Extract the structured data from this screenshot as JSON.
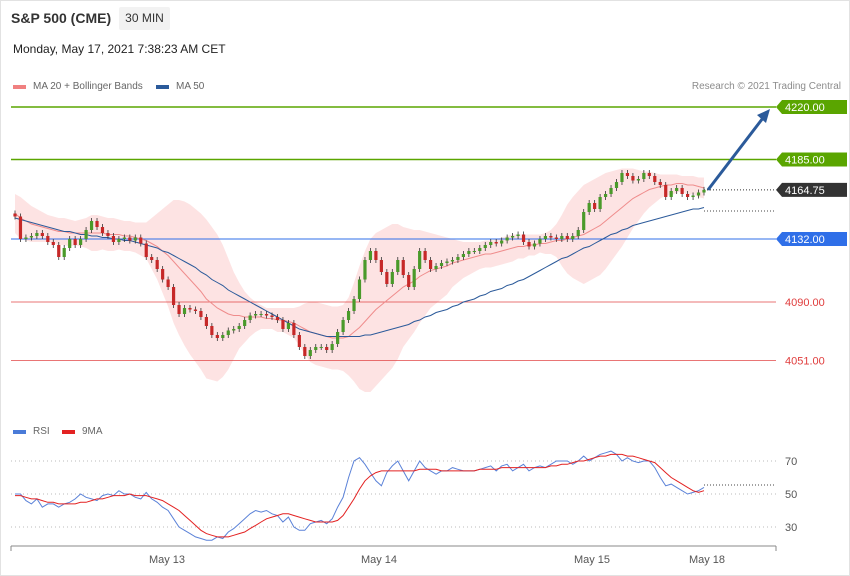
{
  "header": {
    "title": "S&P 500 (CME)",
    "timeframe": "30 MIN",
    "date": "Monday, May 17, 2021 7:38:23 AM CET",
    "copyright": "Research © 2021 Trading Central"
  },
  "legend": {
    "main": [
      {
        "label": "MA 20 + Bollinger Bands",
        "color": "#f08080"
      },
      {
        "label": "MA 50",
        "color": "#2b5a9a"
      }
    ],
    "rsi": [
      {
        "label": "RSI",
        "color": "#4a7bd8"
      },
      {
        "label": "9MA",
        "color": "#e32222"
      }
    ]
  },
  "chart_data": [
    {
      "type": "candlestick",
      "price_range": [
        4030,
        4236
      ],
      "levels": [
        {
          "value": 4220.0,
          "label": "4220.00",
          "color": "#5aa500",
          "kind": "resistance"
        },
        {
          "value": 4185.0,
          "label": "4185.00",
          "color": "#5aa500",
          "kind": "resistance"
        },
        {
          "value": 4164.75,
          "label": "4164.75",
          "color": "#333333",
          "kind": "last"
        },
        {
          "value": 4132.0,
          "label": "4132.00",
          "color": "#2f6fe8",
          "kind": "pivot"
        },
        {
          "value": 4090.0,
          "label": "4090.00",
          "color": "#e03c3c",
          "kind": "support"
        },
        {
          "value": 4051.0,
          "label": "4051.00",
          "color": "#e03c3c",
          "kind": "support"
        }
      ],
      "x_labels": [
        "May 13",
        "May 14",
        "May 15",
        "May 18"
      ],
      "close": [
        4147,
        4132,
        4133,
        4134,
        4136,
        4134,
        4130,
        4128,
        4120,
        4126,
        4132,
        4128,
        4132,
        4138,
        4144,
        4140,
        4136,
        4134,
        4130,
        4132,
        4133,
        4131,
        4133,
        4129,
        4120,
        4118,
        4112,
        4105,
        4100,
        4088,
        4082,
        4086,
        4085,
        4084,
        4080,
        4074,
        4068,
        4066,
        4068,
        4071,
        4072,
        4074,
        4078,
        4081,
        4082,
        4082,
        4081,
        4080,
        4078,
        4072,
        4076,
        4068,
        4060,
        4054,
        4058,
        4060,
        4060,
        4058,
        4062,
        4070,
        4078,
        4084,
        4092,
        4105,
        4118,
        4124,
        4118,
        4110,
        4102,
        4110,
        4118,
        4108,
        4100,
        4112,
        4124,
        4118,
        4112,
        4114,
        4116,
        4117,
        4118,
        4120,
        4122,
        4124,
        4124,
        4126,
        4128,
        4130,
        4129,
        4131,
        4133,
        4134,
        4135,
        4130,
        4127,
        4129,
        4132,
        4134,
        4133,
        4132,
        4134,
        4132,
        4134,
        4138,
        4150,
        4156,
        4152,
        4160,
        4162,
        4166,
        4170,
        4176,
        4174,
        4171,
        4172,
        4176,
        4174,
        4170,
        4168,
        4160,
        4164,
        4166,
        4162,
        4160,
        4161,
        4163,
        4164.75
      ],
      "ma20": [
        4149,
        4146,
        4144,
        4142,
        4141,
        4140,
        4139,
        4138,
        4137,
        4137,
        4136,
        4136,
        4136,
        4136,
        4136,
        4136,
        4136,
        4135,
        4135,
        4135,
        4134,
        4134,
        4133,
        4132,
        4131,
        4129,
        4127,
        4124,
        4121,
        4117,
        4113,
        4109,
        4105,
        4101,
        4097,
        4092,
        4089,
        4086,
        4084,
        4082,
        4081,
        4081,
        4080,
        4080,
        4080,
        4080,
        4079,
        4079,
        4078,
        4078,
        4077,
        4076,
        4074,
        4072,
        4070,
        4069,
        4068,
        4067,
        4066,
        4066,
        4066,
        4067,
        4070,
        4073,
        4077,
        4081,
        4085,
        4088,
        4091,
        4094,
        4097,
        4100,
        4102,
        4104,
        4107,
        4109,
        4111,
        4112,
        4113,
        4114,
        4116,
        4117,
        4118,
        4119,
        4120,
        4121,
        4122,
        4122,
        4123,
        4124,
        4125,
        4126,
        4127,
        4127,
        4128,
        4128,
        4129,
        4129,
        4130,
        4131,
        4131,
        4132,
        4133,
        4134,
        4135,
        4137,
        4139,
        4141,
        4144,
        4147,
        4150,
        4153,
        4156,
        4159,
        4161,
        4163,
        4165,
        4166,
        4167,
        4168,
        4168,
        4169,
        4169,
        4168,
        4168,
        4167,
        4166
      ],
      "bb_upper": [
        4162,
        4160,
        4157,
        4154,
        4152,
        4150,
        4148,
        4147,
        4146,
        4146,
        4145,
        4144,
        4145,
        4146,
        4148,
        4148,
        4147,
        4146,
        4146,
        4145,
        4144,
        4144,
        4143,
        4143,
        4143,
        4146,
        4149,
        4152,
        4155,
        4158,
        4158,
        4157,
        4155,
        4152,
        4149,
        4145,
        4140,
        4135,
        4128,
        4119,
        4110,
        4103,
        4097,
        4093,
        4090,
        4088,
        4086,
        4086,
        4086,
        4086,
        4086,
        4086,
        4087,
        4089,
        4090,
        4090,
        4089,
        4088,
        4087,
        4087,
        4088,
        4093,
        4103,
        4114,
        4124,
        4132,
        4136,
        4138,
        4140,
        4142,
        4142,
        4140,
        4139,
        4138,
        4138,
        4137,
        4136,
        4135,
        4134,
        4133,
        4132,
        4131,
        4130,
        4130,
        4130,
        4130,
        4131,
        4131,
        4132,
        4133,
        4134,
        4135,
        4135,
        4135,
        4135,
        4135,
        4135,
        4136,
        4138,
        4142,
        4148,
        4155,
        4160,
        4164,
        4168,
        4170,
        4172,
        4174,
        4176,
        4177,
        4178,
        4179,
        4179,
        4179,
        4178,
        4177,
        4177,
        4176,
        4175,
        4175,
        4175,
        4175,
        4174,
        4174,
        4174,
        4173,
        4173
      ],
      "bb_lower": [
        4136,
        4132,
        4131,
        4130,
        4130,
        4130,
        4130,
        4129,
        4128,
        4128,
        4127,
        4128,
        4127,
        4126,
        4124,
        4124,
        4125,
        4124,
        4124,
        4125,
        4124,
        4124,
        4123,
        4121,
        4119,
        4112,
        4105,
        4096,
        4087,
        4076,
        4068,
        4061,
        4055,
        4050,
        4045,
        4039,
        4038,
        4037,
        4040,
        4045,
        4052,
        4059,
        4063,
        4067,
        4070,
        4072,
        4072,
        4072,
        4070,
        4070,
        4068,
        4066,
        4061,
        4055,
        4050,
        4048,
        4047,
        4046,
        4045,
        4045,
        4044,
        4041,
        4037,
        4032,
        4030,
        4030,
        4034,
        4038,
        4042,
        4046,
        4052,
        4060,
        4065,
        4070,
        4076,
        4081,
        4086,
        4089,
        4092,
        4095,
        4100,
        4103,
        4106,
        4108,
        4110,
        4112,
        4113,
        4113,
        4114,
        4115,
        4116,
        4117,
        4119,
        4119,
        4121,
        4121,
        4123,
        4122,
        4122,
        4120,
        4114,
        4109,
        4106,
        4104,
        4102,
        4104,
        4106,
        4108,
        4112,
        4117,
        4122,
        4127,
        4133,
        4139,
        4144,
        4149,
        4153,
        4156,
        4159,
        4161,
        4161,
        4163,
        4164,
        4161,
        4162,
        4160,
        4159
      ],
      "ma50": [
        4146,
        4145,
        4144,
        4143,
        4142,
        4141,
        4140,
        4139,
        4138,
        4137,
        4137,
        4136,
        4135,
        4135,
        4134,
        4134,
        4133,
        4133,
        4132,
        4132,
        4131,
        4131,
        4130,
        4129,
        4128,
        4127,
        4126,
        4124,
        4123,
        4121,
        4119,
        4117,
        4115,
        4113,
        4110,
        4108,
        4105,
        4103,
        4101,
        4098,
        4096,
        4094,
        4092,
        4090,
        4088,
        4086,
        4084,
        4082,
        4080,
        4078,
        4076,
        4074,
        4072,
        4071,
        4070,
        4069,
        4068,
        4067,
        4067,
        4067,
        4067,
        4067,
        4067,
        4067,
        4068,
        4068,
        4069,
        4070,
        4071,
        4072,
        4073,
        4074,
        4075,
        4077,
        4078,
        4080,
        4081,
        4083,
        4084,
        4085,
        4087,
        4088,
        4090,
        4091,
        4092,
        4094,
        4095,
        4097,
        4098,
        4099,
        4101,
        4102,
        4104,
        4105,
        4107,
        4109,
        4111,
        4113,
        4115,
        4117,
        4119,
        4120,
        4122,
        4124,
        4126,
        4127,
        4129,
        4131,
        4133,
        4135,
        4136,
        4138,
        4139,
        4141,
        4142,
        4143,
        4144,
        4145,
        4146,
        4147,
        4148,
        4149,
        4150,
        4151,
        4152,
        4152,
        4153
      ],
      "arrow": {
        "from": 4164.75,
        "to": 4220.0
      }
    },
    {
      "type": "line",
      "name_keys": [
        "RSI",
        "9MA"
      ],
      "y_ticks": [
        70,
        50,
        30
      ],
      "ylim": [
        18,
        82
      ],
      "x_labels": [
        "May 13",
        "May 14",
        "May 15",
        "May 18"
      ],
      "series": [
        {
          "name": "RSI",
          "values": [
            50,
            50,
            46,
            44,
            47,
            42,
            44,
            44,
            42,
            44,
            45,
            47,
            50,
            48,
            47,
            46,
            49,
            50,
            49,
            52,
            50,
            50,
            48,
            47,
            51,
            47,
            45,
            42,
            40,
            35,
            30,
            28,
            26,
            24,
            23,
            22,
            22,
            24,
            23,
            27,
            29,
            32,
            35,
            38,
            40,
            39,
            40,
            38,
            37,
            33,
            36,
            30,
            28,
            28,
            32,
            33,
            34,
            32,
            35,
            42,
            48,
            60,
            70,
            72,
            68,
            63,
            58,
            55,
            63,
            67,
            70,
            64,
            58,
            64,
            70,
            66,
            64,
            62,
            64,
            64,
            66,
            65,
            64,
            64,
            64,
            65,
            66,
            67,
            64,
            67,
            68,
            64,
            66,
            68,
            64,
            66,
            67,
            66,
            68,
            70,
            70,
            70,
            68,
            70,
            73,
            70,
            72,
            74,
            75,
            76,
            74,
            70,
            72,
            70,
            69,
            70,
            70,
            66,
            60,
            55,
            56,
            54,
            52,
            50,
            51,
            52,
            54
          ]
        },
        {
          "name": "9MA",
          "values": [
            49,
            49,
            48,
            47,
            47,
            46,
            45,
            45,
            44,
            44,
            44,
            44,
            45,
            45,
            46,
            47,
            47,
            48,
            49,
            49,
            49,
            50,
            49,
            49,
            49,
            48,
            47,
            46,
            44,
            42,
            40,
            37,
            34,
            31,
            28,
            26,
            25,
            24,
            24,
            24,
            25,
            26,
            27,
            29,
            31,
            33,
            35,
            36,
            37,
            38,
            38,
            37,
            36,
            35,
            34,
            33,
            33,
            33,
            33,
            34,
            37,
            42,
            47,
            53,
            58,
            61,
            63,
            64,
            64,
            64,
            64,
            64,
            64,
            64,
            65,
            65,
            65,
            65,
            64,
            64,
            64,
            64,
            64,
            64,
            64,
            65,
            65,
            65,
            65,
            66,
            66,
            66,
            66,
            66,
            66,
            66,
            66,
            66,
            67,
            67,
            68,
            68,
            69,
            70,
            70,
            71,
            72,
            73,
            73,
            74,
            74,
            74,
            73,
            73,
            72,
            71,
            70,
            69,
            66,
            63,
            60,
            58,
            56,
            54,
            52,
            51,
            52
          ]
        }
      ]
    }
  ]
}
